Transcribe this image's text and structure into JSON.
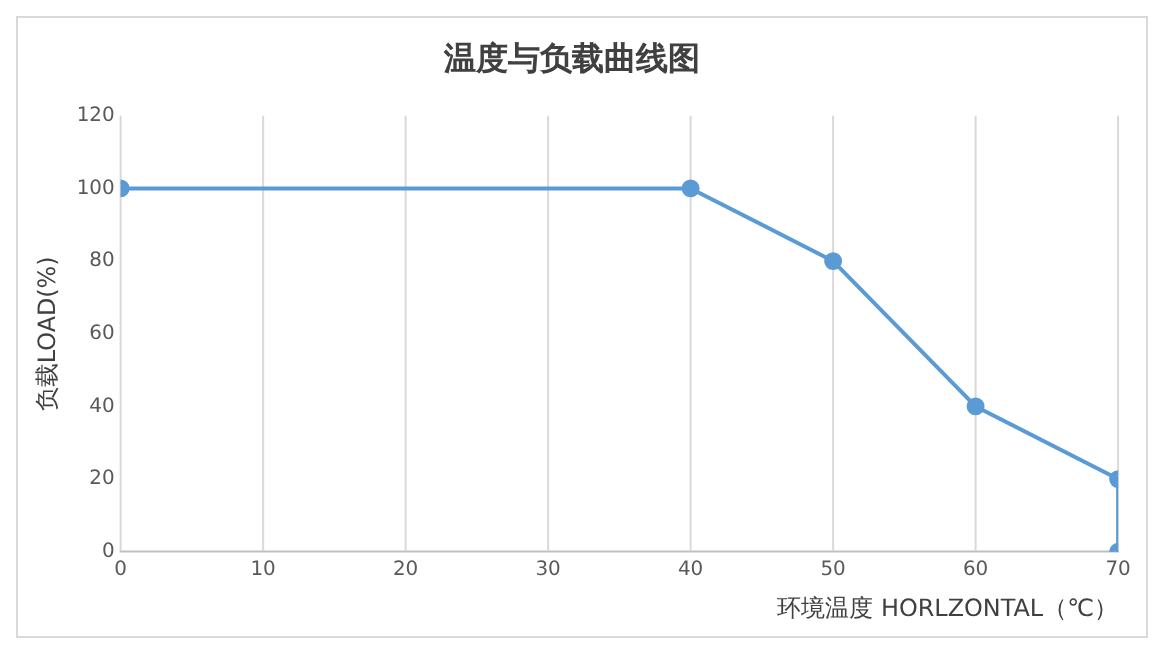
{
  "chart_data": {
    "type": "line",
    "title": "温度与负载曲线图",
    "xlabel": "环境温度 HORLZONTAL（℃）",
    "ylabel": "负载LOAD(%)",
    "x": [
      0,
      40,
      50,
      60,
      70,
      70
    ],
    "series": [
      {
        "color": "#5b9bd5",
        "values": [
          100,
          100,
          80,
          40,
          20,
          0
        ]
      }
    ],
    "xlim": [
      0,
      70
    ],
    "xticks": [
      0,
      10,
      20,
      30,
      40,
      50,
      60,
      70
    ],
    "ylim": [
      0,
      120
    ],
    "yticks": [
      0,
      20,
      40,
      60,
      80,
      100,
      120
    ],
    "grid": "x",
    "legend": false,
    "marker": "circle",
    "line_style": "solid"
  }
}
